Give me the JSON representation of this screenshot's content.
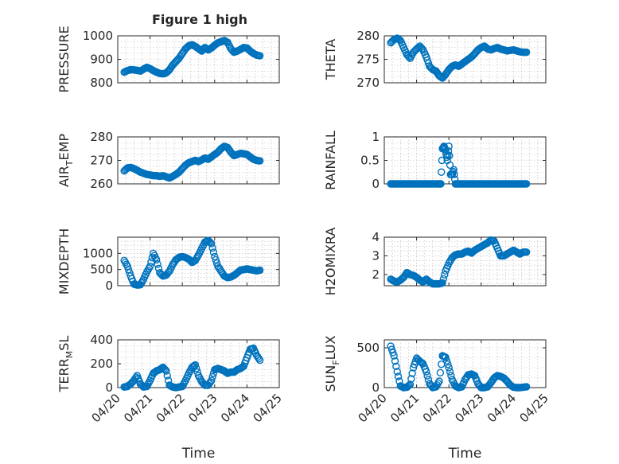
{
  "figure_title": "Figure 1 high",
  "colors": {
    "series": "#0072bd",
    "axis": "#262626",
    "grid": "#b8b8b8"
  },
  "chart_data": [
    {
      "type": "scatter",
      "id": "pressure",
      "title": "Figure 1 high",
      "ylabel_main": "PRESSURE",
      "ylabel_sub": "",
      "ylabel_tail": "",
      "xlabel": "",
      "ylim": [
        800,
        1000
      ],
      "yticks": [
        800,
        900,
        1000
      ],
      "ytick_labels": [
        "800",
        "900",
        "1000"
      ],
      "xticks": [],
      "xtick_labels": [],
      "grid": true,
      "x_unit": "days since 04/20",
      "series": [
        {
          "x": [
            0.2,
            0.3,
            0.4,
            0.5,
            0.6,
            0.7,
            0.8,
            0.9,
            1.0,
            1.1,
            1.2,
            1.3,
            1.4,
            1.5,
            1.6,
            1.7,
            1.8,
            1.9,
            2.0,
            2.1,
            2.2,
            2.3,
            2.4,
            2.5,
            2.6,
            2.7,
            2.8,
            2.9,
            3.0,
            3.1,
            3.2,
            3.3,
            3.4,
            3.5,
            3.6,
            3.7,
            3.8,
            3.9,
            4.0,
            4.1,
            4.2,
            4.3,
            4.4
          ],
          "y": [
            845,
            852,
            856,
            855,
            853,
            850,
            858,
            866,
            860,
            852,
            845,
            840,
            838,
            842,
            855,
            875,
            890,
            905,
            925,
            945,
            958,
            962,
            955,
            945,
            935,
            950,
            940,
            948,
            960,
            970,
            975,
            980,
            972,
            945,
            930,
            935,
            942,
            950,
            948,
            935,
            925,
            918,
            915
          ]
        }
      ]
    },
    {
      "type": "scatter",
      "id": "theta",
      "title": "",
      "ylabel_main": "THETA",
      "ylabel_sub": "",
      "ylabel_tail": "",
      "xlabel": "",
      "ylim": [
        270,
        280
      ],
      "yticks": [
        270,
        275,
        280
      ],
      "ytick_labels": [
        "270",
        "275",
        "280"
      ],
      "xticks": [],
      "xtick_labels": [],
      "grid": true,
      "series": [
        {
          "x": [
            0.2,
            0.3,
            0.4,
            0.5,
            0.6,
            0.7,
            0.8,
            0.9,
            1.0,
            1.1,
            1.2,
            1.3,
            1.4,
            1.5,
            1.6,
            1.7,
            1.8,
            1.9,
            2.0,
            2.1,
            2.2,
            2.3,
            2.4,
            2.5,
            2.6,
            2.7,
            2.8,
            2.9,
            3.0,
            3.1,
            3.2,
            3.3,
            3.4,
            3.5,
            3.6,
            3.7,
            3.8,
            3.9,
            4.0,
            4.1,
            4.2,
            4.3,
            4.4
          ],
          "y": [
            278.5,
            279.2,
            279.5,
            279.0,
            277.5,
            276.0,
            275.2,
            276.5,
            277.2,
            277.8,
            277.0,
            275.5,
            273.5,
            272.8,
            272.5,
            271.5,
            271.0,
            271.8,
            272.8,
            273.5,
            273.8,
            273.5,
            274.0,
            274.5,
            275.0,
            275.5,
            276.2,
            277.0,
            277.5,
            277.8,
            277.2,
            277.0,
            277.3,
            277.5,
            277.2,
            277.0,
            276.8,
            276.9,
            277.0,
            276.8,
            276.6,
            276.5,
            276.5
          ]
        }
      ]
    },
    {
      "type": "scatter",
      "id": "air_temp",
      "title": "",
      "ylabel_main": "AIR",
      "ylabel_sub": "T",
      "ylabel_tail": "EMP",
      "xlabel": "",
      "ylim": [
        260,
        280
      ],
      "yticks": [
        260,
        270,
        280
      ],
      "ytick_labels": [
        "260",
        "270",
        "280"
      ],
      "xticks": [],
      "xtick_labels": [],
      "grid": true,
      "series": [
        {
          "x": [
            0.2,
            0.3,
            0.4,
            0.5,
            0.6,
            0.7,
            0.8,
            0.9,
            1.0,
            1.1,
            1.2,
            1.3,
            1.4,
            1.5,
            1.6,
            1.7,
            1.8,
            1.9,
            2.0,
            2.1,
            2.2,
            2.3,
            2.4,
            2.5,
            2.6,
            2.7,
            2.8,
            2.9,
            3.0,
            3.1,
            3.2,
            3.3,
            3.4,
            3.5,
            3.6,
            3.7,
            3.8,
            3.9,
            4.0,
            4.1,
            4.2,
            4.3,
            4.4
          ],
          "y": [
            265.5,
            266.8,
            267.0,
            266.5,
            265.8,
            265.0,
            264.5,
            264.0,
            263.8,
            263.5,
            263.5,
            263.2,
            263.5,
            263.0,
            262.5,
            263.2,
            264.0,
            265.0,
            266.5,
            268.0,
            269.0,
            269.5,
            270.0,
            269.5,
            270.2,
            271.0,
            270.5,
            271.5,
            272.5,
            273.5,
            275.0,
            276.0,
            275.5,
            273.5,
            272.0,
            272.5,
            273.0,
            272.8,
            272.5,
            271.5,
            270.5,
            270.0,
            269.8
          ]
        }
      ]
    },
    {
      "type": "scatter",
      "id": "rainfall",
      "title": "",
      "ylabel_main": "RAINFALL",
      "ylabel_sub": "",
      "ylabel_tail": "",
      "xlabel": "",
      "ylim": [
        0,
        1
      ],
      "yticks": [
        0,
        0.5,
        1
      ],
      "ytick_labels": [
        "0",
        "0.5",
        "1"
      ],
      "xticks": [],
      "xtick_labels": [],
      "grid": true,
      "series": [
        {
          "x": [
            0.2,
            0.3,
            0.4,
            0.5,
            0.6,
            0.7,
            0.8,
            0.9,
            1.0,
            1.1,
            1.2,
            1.3,
            1.4,
            1.5,
            1.6,
            1.7,
            1.75,
            1.8,
            1.85,
            1.9,
            1.95,
            2.0,
            2.05,
            2.1,
            2.15,
            2.2,
            2.3,
            2.4,
            2.5,
            2.6,
            2.7,
            2.8,
            2.9,
            3.0,
            3.1,
            3.2,
            3.3,
            3.4,
            3.5,
            3.6,
            3.7,
            3.8,
            3.9,
            4.0,
            4.1,
            4.2,
            4.3,
            4.4
          ],
          "y": [
            0,
            0,
            0,
            0,
            0,
            0,
            0,
            0,
            0,
            0,
            0,
            0,
            0,
            0,
            0,
            0,
            0,
            0.75,
            0.8,
            0.7,
            0.5,
            0.8,
            0.2,
            0.2,
            0.3,
            0,
            0,
            0,
            0,
            0,
            0,
            0,
            0,
            0,
            0,
            0,
            0,
            0,
            0,
            0,
            0,
            0,
            0,
            0,
            0,
            0,
            0,
            0
          ]
        }
      ]
    },
    {
      "type": "scatter",
      "id": "mixdepth",
      "title": "",
      "ylabel_main": "MIXDEPTH",
      "ylabel_sub": "",
      "ylabel_tail": "",
      "xlabel": "",
      "ylim": [
        0,
        1500
      ],
      "yticks": [
        0,
        500,
        1000
      ],
      "ytick_labels": [
        "0",
        "500",
        "1000"
      ],
      "xticks": [],
      "xtick_labels": [],
      "grid": true,
      "series": [
        {
          "x": [
            0.2,
            0.3,
            0.4,
            0.5,
            0.6,
            0.7,
            0.8,
            0.9,
            1.0,
            1.1,
            1.2,
            1.3,
            1.4,
            1.5,
            1.6,
            1.7,
            1.8,
            1.9,
            2.0,
            2.1,
            2.2,
            2.3,
            2.4,
            2.5,
            2.6,
            2.7,
            2.8,
            2.9,
            3.0,
            3.1,
            3.2,
            3.3,
            3.4,
            3.5,
            3.6,
            3.7,
            3.8,
            3.9,
            4.0,
            4.1,
            4.2,
            4.3,
            4.4
          ],
          "y": [
            780,
            600,
            300,
            50,
            20,
            30,
            200,
            420,
            600,
            1000,
            800,
            400,
            300,
            330,
            450,
            650,
            800,
            880,
            900,
            870,
            820,
            720,
            780,
            950,
            1150,
            1350,
            1400,
            1300,
            900,
            600,
            450,
            300,
            250,
            270,
            320,
            400,
            480,
            500,
            520,
            500,
            480,
            460,
            480
          ]
        }
      ]
    },
    {
      "type": "scatter",
      "id": "h2omixra",
      "title": "",
      "ylabel_main": "H2OMIXRA",
      "ylabel_sub": "",
      "ylabel_tail": "",
      "xlabel": "",
      "ylim": [
        1.4,
        4
      ],
      "yticks": [
        2,
        3,
        4
      ],
      "ytick_labels": [
        "2",
        "3",
        "4"
      ],
      "xticks": [],
      "xtick_labels": [],
      "grid": true,
      "series": [
        {
          "x": [
            0.2,
            0.3,
            0.4,
            0.5,
            0.6,
            0.7,
            0.8,
            0.9,
            1.0,
            1.1,
            1.2,
            1.3,
            1.4,
            1.5,
            1.6,
            1.7,
            1.8,
            1.9,
            2.0,
            2.1,
            2.2,
            2.3,
            2.4,
            2.5,
            2.6,
            2.7,
            2.8,
            2.9,
            3.0,
            3.1,
            3.2,
            3.3,
            3.4,
            3.5,
            3.6,
            3.7,
            3.8,
            3.9,
            4.0,
            4.1,
            4.2,
            4.3,
            4.4
          ],
          "y": [
            1.75,
            1.65,
            1.6,
            1.7,
            1.85,
            2.1,
            2.0,
            1.95,
            1.85,
            1.7,
            1.6,
            1.75,
            1.6,
            1.5,
            1.5,
            1.5,
            1.55,
            2.2,
            2.6,
            2.9,
            3.05,
            3.1,
            3.1,
            3.2,
            3.25,
            3.15,
            3.3,
            3.4,
            3.5,
            3.6,
            3.7,
            3.85,
            3.8,
            3.4,
            3.0,
            3.0,
            3.1,
            3.2,
            3.3,
            3.2,
            3.1,
            3.2,
            3.2
          ]
        }
      ]
    },
    {
      "type": "scatter",
      "id": "terr_msl",
      "title": "",
      "ylabel_main": "TERR",
      "ylabel_sub": "M",
      "ylabel_tail": "SL",
      "xlabel": "Time",
      "ylim": [
        0,
        400
      ],
      "yticks": [
        0,
        200,
        400
      ],
      "ytick_labels": [
        "0",
        "200",
        "400"
      ],
      "xticks": [
        0,
        1,
        2,
        3,
        4,
        5
      ],
      "xtick_labels": [
        "04/20",
        "04/21",
        "04/22",
        "04/23",
        "04/24",
        "04/25"
      ],
      "grid": true,
      "series": [
        {
          "x": [
            0.2,
            0.3,
            0.4,
            0.5,
            0.6,
            0.7,
            0.8,
            0.9,
            1.0,
            1.1,
            1.2,
            1.3,
            1.4,
            1.5,
            1.6,
            1.7,
            1.8,
            1.9,
            2.0,
            2.1,
            2.2,
            2.3,
            2.4,
            2.5,
            2.6,
            2.7,
            2.8,
            2.9,
            3.0,
            3.1,
            3.2,
            3.3,
            3.4,
            3.5,
            3.6,
            3.7,
            3.8,
            3.9,
            4.0,
            4.1,
            4.2,
            4.3,
            4.4
          ],
          "y": [
            5,
            10,
            30,
            60,
            100,
            30,
            5,
            10,
            60,
            120,
            140,
            150,
            170,
            140,
            20,
            5,
            0,
            5,
            10,
            60,
            120,
            170,
            190,
            100,
            50,
            20,
            20,
            60,
            150,
            160,
            150,
            140,
            120,
            130,
            130,
            150,
            160,
            180,
            250,
            320,
            330,
            270,
            230
          ]
        }
      ]
    },
    {
      "type": "scatter",
      "id": "sun_flux",
      "title": "",
      "ylabel_main": "SUN",
      "ylabel_sub": "F",
      "ylabel_tail": "LUX",
      "xlabel": "Time",
      "ylim": [
        0,
        600
      ],
      "yticks": [
        0,
        500
      ],
      "ytick_labels": [
        "0",
        "500"
      ],
      "xticks": [
        0,
        1,
        2,
        3,
        4,
        5
      ],
      "xtick_labels": [
        "04/20",
        "04/21",
        "04/22",
        "04/23",
        "04/24",
        "04/25"
      ],
      "grid": true,
      "series": [
        {
          "x": [
            0.2,
            0.3,
            0.4,
            0.5,
            0.6,
            0.7,
            0.8,
            0.9,
            1.0,
            1.1,
            1.2,
            1.3,
            1.4,
            1.5,
            1.6,
            1.7,
            1.8,
            1.9,
            2.0,
            2.1,
            2.2,
            2.3,
            2.4,
            2.5,
            2.6,
            2.7,
            2.8,
            2.9,
            3.0,
            3.1,
            3.2,
            3.3,
            3.4,
            3.5,
            3.6,
            3.7,
            3.8,
            3.9,
            4.0,
            4.1,
            4.2,
            4.3,
            4.4
          ],
          "y": [
            520,
            400,
            200,
            20,
            0,
            5,
            40,
            250,
            370,
            330,
            300,
            200,
            50,
            0,
            10,
            80,
            400,
            380,
            250,
            100,
            20,
            0,
            10,
            100,
            160,
            170,
            150,
            50,
            0,
            0,
            10,
            60,
            120,
            150,
            140,
            120,
            80,
            30,
            5,
            0,
            0,
            5,
            10
          ]
        }
      ]
    }
  ]
}
